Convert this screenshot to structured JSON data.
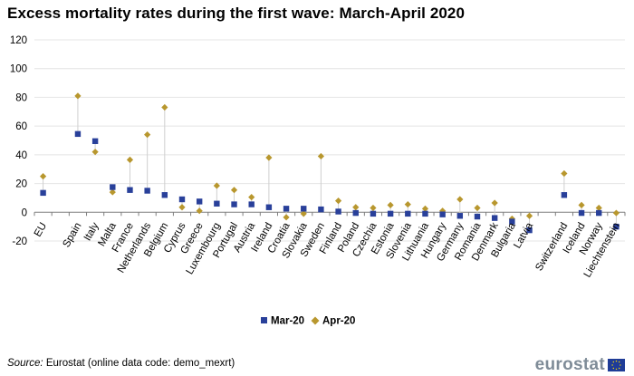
{
  "title": "Excess mortality rates during the first wave: March-April 2020",
  "source_label": "Source:",
  "source_text": " Eurostat (online data code: demo_mexrt)",
  "logo_text": "eurostat",
  "colors": {
    "mar": "#29409a",
    "apr": "#b8972e",
    "stem": "#cfcfcf",
    "grid": "#e4e4e4",
    "axis": "#7f7f7f"
  },
  "chart_data": {
    "type": "scatter",
    "title": "Excess mortality rates during the first wave: March-April 2020",
    "xlabel": "",
    "ylabel": "",
    "ylim": [
      -20,
      120
    ],
    "yticks": [
      -20,
      0,
      20,
      40,
      60,
      80,
      100,
      120
    ],
    "grid": true,
    "legend_position": "bottom-center",
    "categories": [
      "EU",
      "",
      "Spain",
      "Italy",
      "Malta",
      "France",
      "Netherlands",
      "Belgium",
      "Cyprus",
      "Greece",
      "Luxembourg",
      "Portugal",
      "Austria",
      "Ireland",
      "Croatia",
      "Slovakia",
      "Sweden",
      "Finland",
      "Poland",
      "Czechia",
      "Estonia",
      "Slovenia",
      "Lithuania",
      "Hungary",
      "Germany",
      "Romania",
      "Denmark",
      "Bulgaria",
      "Latvia",
      "",
      "Switzerland",
      "Iceland",
      "Norway",
      "Liechtenstein"
    ],
    "series": [
      {
        "name": "Mar-20",
        "marker": "square",
        "values": [
          13.5,
          null,
          54.5,
          49.5,
          17.5,
          15.5,
          15,
          12,
          9,
          7.5,
          6,
          5.5,
          5.5,
          3.5,
          2.5,
          2.5,
          2,
          0.5,
          -0.5,
          -1,
          -1,
          -1,
          -1,
          -1.5,
          -2.5,
          -3,
          -4,
          -6.5,
          -12.5,
          null,
          12,
          -0.5,
          -0.5,
          -10
        ]
      },
      {
        "name": "Apr-20",
        "marker": "diamond",
        "values": [
          25,
          null,
          81,
          42,
          14,
          36.5,
          54,
          73,
          3.5,
          1,
          18.5,
          15.5,
          10.5,
          38,
          -3.5,
          -1,
          39,
          8,
          3.5,
          3,
          5,
          5.5,
          2.5,
          1,
          9,
          3,
          6.5,
          -4.5,
          -2.5,
          null,
          27,
          5,
          3,
          -0.5
        ]
      }
    ]
  }
}
